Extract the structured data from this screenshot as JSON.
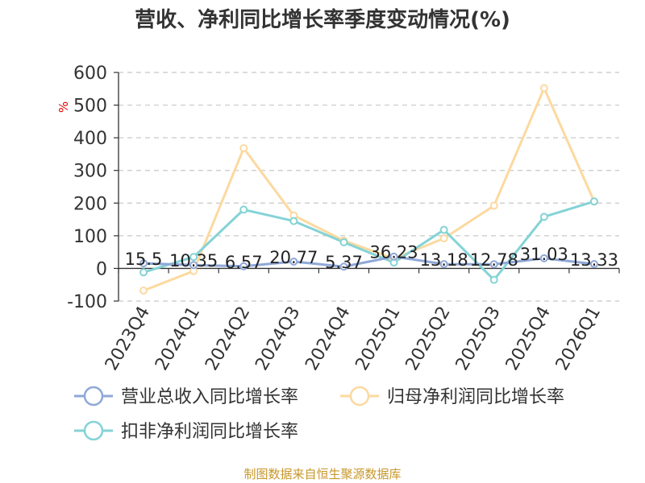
{
  "chart_data": {
    "type": "line",
    "title": "营收、净利同比增长率季度变动情况(%)",
    "ylabel": "%",
    "xlabel": "",
    "ylim": [
      -100,
      600
    ],
    "yticks": [
      -100,
      0,
      100,
      200,
      300,
      400,
      500,
      600
    ],
    "grid": true,
    "legend_position": "bottom",
    "categories": [
      "2023Q4",
      "2024Q1",
      "2024Q2",
      "2024Q3",
      "2024Q4",
      "2025Q1",
      "2025Q2",
      "2025Q3",
      "2025Q4",
      "2026Q1"
    ],
    "series": [
      {
        "name": "营业总收入同比增长率",
        "color": "#8fa8d8",
        "values": [
          15.5,
          10.35,
          6.57,
          20.77,
          5.37,
          36.23,
          13.18,
          12.78,
          31.03,
          13.33
        ],
        "labels": [
          "15.5",
          "10.35",
          "6.57",
          "20.77",
          "5.37",
          "36.23",
          "13.18",
          "12.78",
          "31.03",
          "13.33"
        ]
      },
      {
        "name": "归母净利润同比增长率",
        "color": "#fcd9a0",
        "values": [
          -68,
          -8,
          368,
          162,
          85,
          30,
          92,
          192,
          552,
          205
        ]
      },
      {
        "name": "扣非净利润同比增长率",
        "color": "#84d3d6",
        "values": [
          -12,
          35,
          180,
          145,
          80,
          18,
          118,
          -35,
          158,
          205
        ]
      }
    ],
    "source": "制图数据来自恒生聚源数据库"
  }
}
